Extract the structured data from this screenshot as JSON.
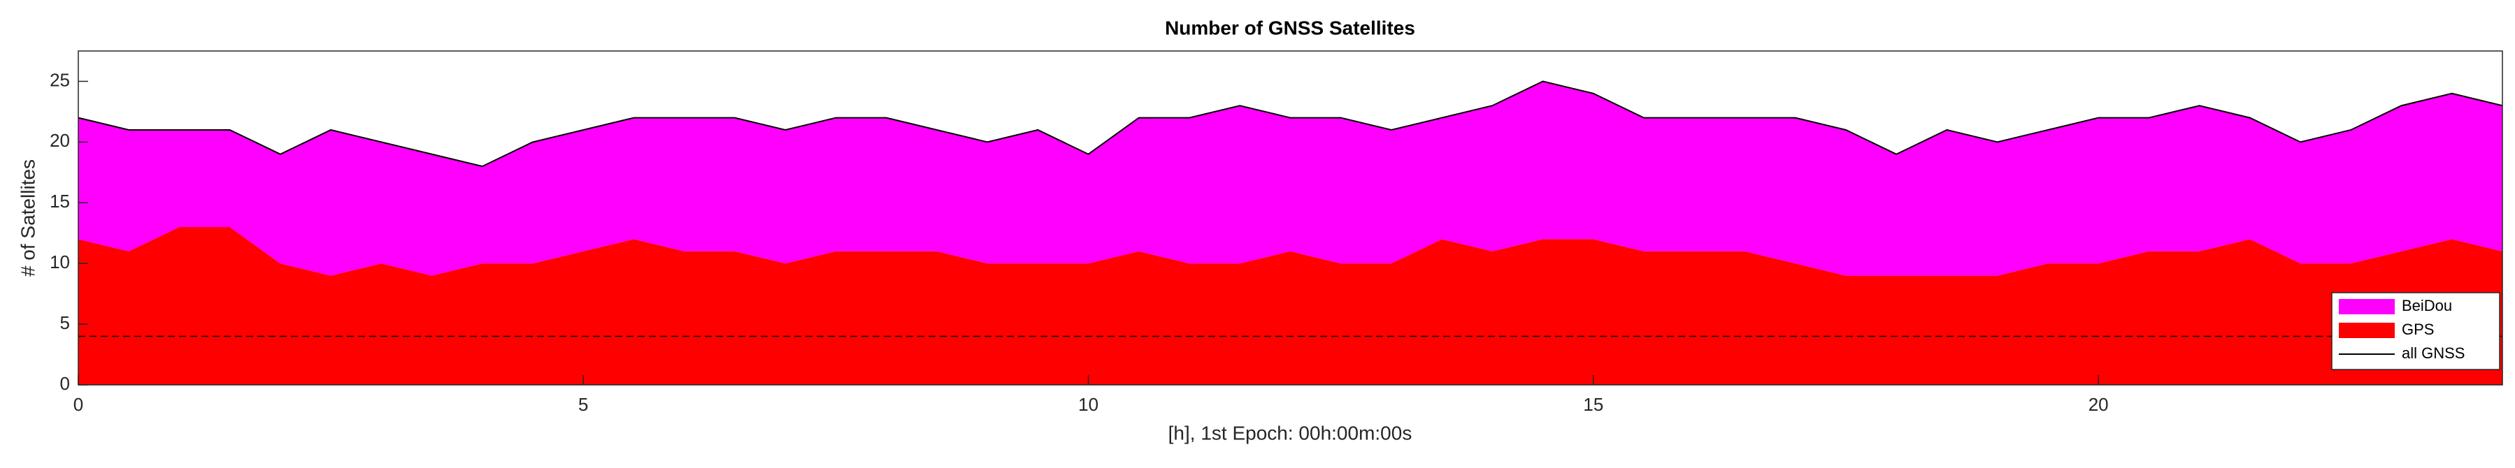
{
  "chart_data": {
    "type": "stacked-area",
    "title": "Number of GNSS Satellites",
    "x_label": "[h], 1st Epoch: 00h:00m:00s",
    "y_label": "# of Satellites",
    "x": [
      0,
      0.5,
      1,
      1.5,
      2,
      2.5,
      3,
      3.5,
      4,
      4.5,
      5,
      5.5,
      6,
      6.5,
      7,
      7.5,
      8,
      8.5,
      9,
      9.5,
      10,
      10.5,
      11,
      11.5,
      12,
      12.5,
      13,
      13.5,
      14,
      14.5,
      15,
      15.5,
      16,
      16.5,
      17,
      17.5,
      18,
      18.5,
      19,
      19.5,
      20,
      20.5,
      21,
      21.5,
      22,
      22.5,
      23,
      23.5,
      24
    ],
    "series": [
      {
        "name": "BeiDou",
        "kind": "area",
        "color": "#ff00ff",
        "values": [
          10,
          10,
          8,
          8,
          9,
          12,
          10,
          10,
          8,
          10,
          10,
          10,
          11,
          11,
          11,
          11,
          11,
          10,
          10,
          11,
          9,
          11,
          12,
          13,
          11,
          12,
          11,
          10,
          12,
          13,
          12,
          11,
          11,
          11,
          12,
          12,
          10,
          12,
          11,
          11,
          12,
          11,
          12,
          10,
          10,
          11,
          12,
          12,
          12
        ]
      },
      {
        "name": "GPS",
        "kind": "area",
        "color": "#ff0000",
        "values": [
          12,
          11,
          13,
          13,
          10,
          9,
          10,
          9,
          10,
          10,
          11,
          12,
          11,
          11,
          10,
          11,
          11,
          11,
          10,
          10,
          10,
          11,
          10,
          10,
          11,
          10,
          10,
          12,
          11,
          12,
          12,
          11,
          11,
          11,
          10,
          9,
          9,
          9,
          9,
          10,
          10,
          11,
          11,
          12,
          10,
          10,
          11,
          12,
          11
        ]
      },
      {
        "name": "all GNSS",
        "kind": "line",
        "color": "#000000",
        "values": [
          22,
          21,
          21,
          21,
          19,
          21,
          20,
          19,
          18,
          20,
          21,
          22,
          22,
          22,
          21,
          22,
          22,
          21,
          20,
          21,
          19,
          22,
          22,
          23,
          22,
          22,
          21,
          22,
          23,
          25,
          24,
          22,
          22,
          22,
          22,
          21,
          19,
          21,
          20,
          21,
          22,
          22,
          23,
          22,
          20,
          21,
          23,
          24,
          23
        ]
      }
    ],
    "hline": 4,
    "xlim": [
      0,
      24
    ],
    "xticks": [
      0,
      5,
      10,
      15,
      20
    ],
    "ylim": [
      0,
      27.5
    ],
    "yticks": [
      0,
      5,
      10,
      15,
      20,
      25
    ],
    "grid": false,
    "legend": "lower right"
  }
}
